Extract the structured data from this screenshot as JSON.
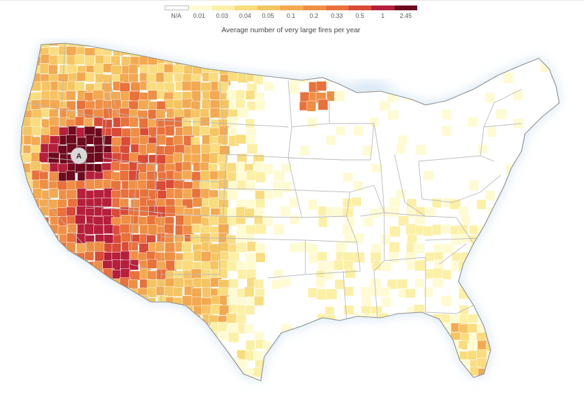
{
  "legend": {
    "title": "Average number of very large fires per year",
    "items": [
      {
        "label": "N/A",
        "color": "#ffffff"
      },
      {
        "label": "0.01",
        "color": "#fefbd3"
      },
      {
        "label": "0.03",
        "color": "#fcf0a6"
      },
      {
        "label": "0.04",
        "color": "#f9dc7d"
      },
      {
        "label": "0.05",
        "color": "#f5c563"
      },
      {
        "label": "0.1",
        "color": "#f3a951"
      },
      {
        "label": "0.2",
        "color": "#ee8f45"
      },
      {
        "label": "0.33",
        "color": "#e8713c"
      },
      {
        "label": "0.5",
        "color": "#d94b37"
      },
      {
        "label": "1",
        "color": "#b61f3c"
      },
      {
        "label": "2.45",
        "color": "#6e0a1e"
      }
    ]
  },
  "marker": {
    "label": "A"
  },
  "colors": {
    "water": "#dbeaf7",
    "land": "#ffffff",
    "state_border": "#b9b9b9",
    "county_border": "#ffffff",
    "na": "#ffffff",
    "very_low": "#fefbd3",
    "low": "#fcf0a6",
    "low_mid": "#f9dc7d",
    "mid": "#f5c563",
    "mid_high": "#f3a951",
    "high": "#ee8f45",
    "higher": "#e8713c",
    "very_high": "#d94b37",
    "extreme": "#b61f3c",
    "max": "#6e0a1e"
  }
}
